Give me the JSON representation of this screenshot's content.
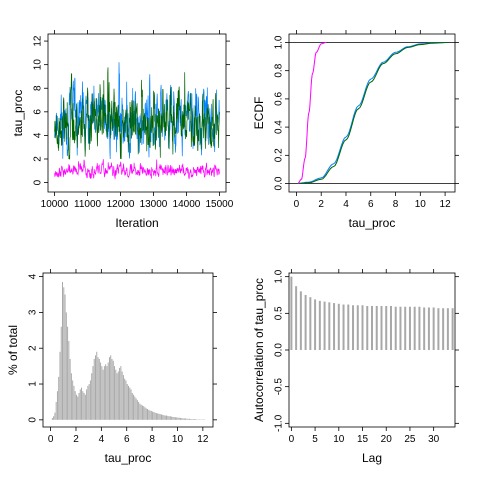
{
  "chart_data": [
    {
      "id": "trace",
      "type": "line",
      "xlabel": "Iteration",
      "ylabel": "tau_proc",
      "xlim": [
        9800,
        15200
      ],
      "ylim": [
        -0.8,
        12.6
      ],
      "xticks": [
        "10000",
        "11000",
        "12000",
        "13000",
        "14000",
        "15000"
      ],
      "yticks": [
        "0",
        "2",
        "4",
        "6",
        "8",
        "10",
        "12"
      ],
      "iterations": [
        10000,
        15000
      ],
      "series": [
        {
          "color": "#0080ff",
          "level": 5.2,
          "spread": 1.4,
          "min": 2.0,
          "max": 10.2,
          "seed": 11
        },
        {
          "color": "#006400",
          "level": 5.0,
          "spread": 1.3,
          "min": 2.0,
          "max": 12.2,
          "seed": 23
        },
        {
          "color": "#ff00ff",
          "level": 1.0,
          "spread": 0.28,
          "min": 0.3,
          "max": 2.3,
          "seed": 37
        }
      ]
    },
    {
      "id": "ecdf",
      "type": "line",
      "xlabel": "tau_proc",
      "ylabel": "ECDF",
      "xlim": [
        -0.6,
        12.8
      ],
      "ylim": [
        -0.06,
        1.06
      ],
      "xticks": [
        "0",
        "2",
        "4",
        "6",
        "8",
        "10",
        "12"
      ],
      "yticks": [
        "0.0",
        "0.2",
        "0.4",
        "0.6",
        "0.8",
        "1.0"
      ],
      "reference_lines": [
        0,
        1
      ],
      "series": [
        {
          "color": "#0080ff",
          "cdf": [
            [
              0,
              0
            ],
            [
              1,
              0.01
            ],
            [
              2,
              0.04
            ],
            [
              3,
              0.14
            ],
            [
              4,
              0.33
            ],
            [
              5,
              0.55
            ],
            [
              6,
              0.74
            ],
            [
              7,
              0.86
            ],
            [
              8,
              0.93
            ],
            [
              9,
              0.97
            ],
            [
              10,
              0.99
            ],
            [
              11,
              0.997
            ],
            [
              12.2,
              1
            ]
          ]
        },
        {
          "color": "#006400",
          "cdf": [
            [
              0,
              0
            ],
            [
              1,
              0.005
            ],
            [
              2,
              0.03
            ],
            [
              3,
              0.12
            ],
            [
              4,
              0.31
            ],
            [
              5,
              0.53
            ],
            [
              6,
              0.72
            ],
            [
              7,
              0.85
            ],
            [
              8,
              0.92
            ],
            [
              9,
              0.965
            ],
            [
              10,
              0.985
            ],
            [
              11,
              0.995
            ],
            [
              12.2,
              1
            ]
          ]
        },
        {
          "color": "#ff00ff",
          "cdf": [
            [
              0.1,
              0
            ],
            [
              0.4,
              0.03
            ],
            [
              0.7,
              0.18
            ],
            [
              1.0,
              0.5
            ],
            [
              1.3,
              0.78
            ],
            [
              1.6,
              0.93
            ],
            [
              2.0,
              0.99
            ],
            [
              2.4,
              1
            ]
          ]
        }
      ]
    },
    {
      "id": "histogram",
      "type": "bar",
      "xlabel": "tau_proc",
      "ylabel": "% of total",
      "xlim": [
        -0.6,
        12.8
      ],
      "ylim": [
        -0.2,
        4.1
      ],
      "xticks": [
        "0",
        "2",
        "4",
        "6",
        "8",
        "10",
        "12"
      ],
      "yticks": [
        "0",
        "1",
        "2",
        "3",
        "4"
      ],
      "bar_color": "#a8a8a8",
      "bin_start": 0.1,
      "bin_width": 0.1,
      "values": [
        0.05,
        0.1,
        0.2,
        0.5,
        0.8,
        1.2,
        1.9,
        2.6,
        3.85,
        3.7,
        3.5,
        3.0,
        2.6,
        2.2,
        1.7,
        1.3,
        1.1,
        0.95,
        0.8,
        0.7,
        0.65,
        0.75,
        0.85,
        0.9,
        0.8,
        0.75,
        0.7,
        0.85,
        0.95,
        1.0,
        1.1,
        1.3,
        1.5,
        1.7,
        1.8,
        1.9,
        1.75,
        1.7,
        1.6,
        1.5,
        1.4,
        1.5,
        1.55,
        1.5,
        1.6,
        1.75,
        1.8,
        1.7,
        1.65,
        1.5,
        1.4,
        1.3,
        1.35,
        1.45,
        1.5,
        1.35,
        1.25,
        1.15,
        1.1,
        1.0,
        0.95,
        0.9,
        0.85,
        0.75,
        0.7,
        0.65,
        0.6,
        0.55,
        0.5,
        0.45,
        0.42,
        0.4,
        0.38,
        0.35,
        0.32,
        0.3,
        0.28,
        0.26,
        0.25,
        0.23,
        0.22,
        0.2,
        0.19,
        0.18,
        0.17,
        0.16,
        0.15,
        0.14,
        0.13,
        0.12,
        0.12,
        0.11,
        0.1,
        0.1,
        0.09,
        0.08,
        0.08,
        0.07,
        0.07,
        0.06,
        0.06,
        0.05,
        0.05,
        0.04,
        0.04,
        0.04,
        0.03,
        0.03,
        0.03,
        0.02,
        0.02,
        0.02,
        0.02,
        0.02,
        0.01,
        0.01,
        0.01,
        0.01,
        0.01,
        0.01,
        0.01
      ]
    },
    {
      "id": "autocorrelation",
      "type": "bar",
      "xlabel": "Lag",
      "ylabel": "Autocorrelation of tau_proc",
      "xlim": [
        -0.5,
        34.5
      ],
      "ylim": [
        -1.05,
        1.05
      ],
      "xticks": [
        "0",
        "5",
        "10",
        "15",
        "20",
        "25",
        "30"
      ],
      "yticks": [
        "-1.0",
        "-0.5",
        "0.0",
        "0.5",
        "1.0"
      ],
      "bar_color": "#a8a8a8",
      "lags": [
        0,
        34
      ],
      "values": [
        1.0,
        0.87,
        0.8,
        0.75,
        0.72,
        0.69,
        0.67,
        0.66,
        0.65,
        0.64,
        0.63,
        0.62,
        0.62,
        0.61,
        0.61,
        0.61,
        0.6,
        0.6,
        0.6,
        0.6,
        0.6,
        0.6,
        0.59,
        0.59,
        0.59,
        0.59,
        0.59,
        0.59,
        0.58,
        0.58,
        0.58,
        0.57,
        0.57,
        0.57,
        0.57
      ]
    }
  ]
}
